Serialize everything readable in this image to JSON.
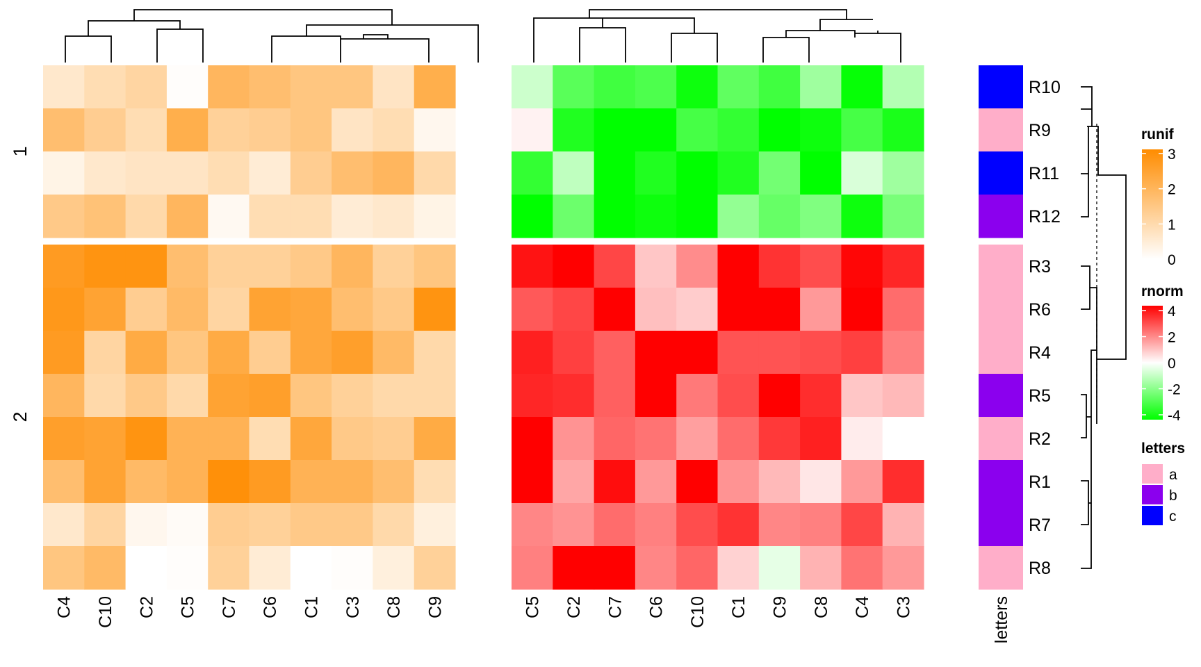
{
  "chart_data": {
    "type": "heatmap",
    "row_splits": [
      {
        "label": "1",
        "rows": [
          "R10",
          "R9",
          "R11",
          "R12"
        ]
      },
      {
        "label": "2",
        "rows": [
          "R3",
          "R6",
          "R4",
          "R5",
          "R2",
          "R1",
          "R7",
          "R8"
        ]
      }
    ],
    "row_order": [
      "R10",
      "R9",
      "R11",
      "R12",
      "R3",
      "R6",
      "R4",
      "R5",
      "R2",
      "R1",
      "R7",
      "R8"
    ],
    "heatmaps": [
      {
        "name": "runif",
        "columns": [
          "C4",
          "C10",
          "C2",
          "C5",
          "C7",
          "C6",
          "C1",
          "C3",
          "C8",
          "C9"
        ],
        "values": [
          [
            0.6,
            0.9,
            1.1,
            0.05,
            1.9,
            1.7,
            1.5,
            1.5,
            0.7,
            2.1
          ],
          [
            1.7,
            1.3,
            0.9,
            2.1,
            1.2,
            1.3,
            1.5,
            0.7,
            0.9,
            0.2
          ],
          [
            0.3,
            0.6,
            0.7,
            0.7,
            0.9,
            0.5,
            1.3,
            1.7,
            1.9,
            1.0
          ],
          [
            1.4,
            1.6,
            1.0,
            1.9,
            0.15,
            0.9,
            0.9,
            0.5,
            0.6,
            0.3
          ],
          [
            2.6,
            2.8,
            2.8,
            1.7,
            1.2,
            1.2,
            1.4,
            1.9,
            1.2,
            1.5
          ],
          [
            2.7,
            2.4,
            1.3,
            1.8,
            1.1,
            2.4,
            2.3,
            1.7,
            1.4,
            2.8
          ],
          [
            2.6,
            1.1,
            2.2,
            1.5,
            2.2,
            1.3,
            2.3,
            2.5,
            1.8,
            1.0
          ],
          [
            1.9,
            1.0,
            1.4,
            1.0,
            2.4,
            2.5,
            1.5,
            1.2,
            1.0,
            1.0
          ],
          [
            2.5,
            2.4,
            2.8,
            2.0,
            2.0,
            0.9,
            2.3,
            1.4,
            1.3,
            2.2
          ],
          [
            1.7,
            2.4,
            1.8,
            2.0,
            2.9,
            2.6,
            2.0,
            2.0,
            1.7,
            0.9
          ],
          [
            0.6,
            1.1,
            0.2,
            0.1,
            1.3,
            1.2,
            1.4,
            1.4,
            1.0,
            0.4
          ],
          [
            1.5,
            1.8,
            0.0,
            0.05,
            1.2,
            0.5,
            0.0,
            0.05,
            0.4,
            1.2
          ]
        ],
        "legend": {
          "title": "runif",
          "ticks": [
            0,
            1,
            2,
            3
          ]
        }
      },
      {
        "name": "rnorm",
        "columns": [
          "C5",
          "C2",
          "C7",
          "C6",
          "C10",
          "C1",
          "C9",
          "C8",
          "C4",
          "C3"
        ],
        "values": [
          [
            -0.8,
            -2.6,
            -3.0,
            -2.8,
            -3.8,
            -2.5,
            -3.0,
            -1.5,
            -3.9,
            -1.2
          ],
          [
            0.2,
            -3.5,
            -4.5,
            -4.0,
            -2.9,
            -3.2,
            -4.8,
            -3.8,
            -2.9,
            -3.6
          ],
          [
            -3.2,
            -1.0,
            -4.0,
            -3.5,
            -4.2,
            -3.5,
            -2.2,
            -4.0,
            -0.6,
            -1.5
          ],
          [
            -4.6,
            -2.3,
            -4.6,
            -3.8,
            -4.8,
            -1.7,
            -2.4,
            -2.0,
            -3.8,
            -2.1
          ],
          [
            3.7,
            4.4,
            2.9,
            0.9,
            1.8,
            4.4,
            3.2,
            2.8,
            3.9,
            3.4
          ],
          [
            2.6,
            2.9,
            4.1,
            1.0,
            0.8,
            4.4,
            4.4,
            1.6,
            4.1,
            2.3
          ],
          [
            3.5,
            3.0,
            2.5,
            4.4,
            4.4,
            2.7,
            2.7,
            2.8,
            3.0,
            2.0
          ],
          [
            3.4,
            3.3,
            2.5,
            4.4,
            2.1,
            2.8,
            4.3,
            3.3,
            0.9,
            1.1
          ],
          [
            4.4,
            1.7,
            2.4,
            2.2,
            1.5,
            2.3,
            3.1,
            3.5,
            0.3,
            0.0
          ],
          [
            4.4,
            1.4,
            3.8,
            1.6,
            4.4,
            1.7,
            1.1,
            0.4,
            1.6,
            3.3
          ],
          [
            1.9,
            1.7,
            2.3,
            2.0,
            2.8,
            3.2,
            1.9,
            2.0,
            2.9,
            1.2
          ],
          [
            2.0,
            4.4,
            4.4,
            1.9,
            2.4,
            0.7,
            -0.4,
            1.2,
            2.2,
            1.6
          ]
        ],
        "legend": {
          "title": "rnorm",
          "ticks": [
            4,
            2,
            0,
            -2,
            -4
          ]
        }
      }
    ],
    "row_annotation": {
      "name": "letters",
      "values": [
        "c",
        "a",
        "c",
        "b",
        "a",
        "a",
        "a",
        "b",
        "a",
        "b",
        "b",
        "a"
      ],
      "legend": {
        "title": "letters",
        "levels": [
          "a",
          "b",
          "c"
        ]
      }
    },
    "colors": {
      "runif_low": "#ffffff",
      "runif_high": "#ff8c00",
      "rnorm_low": "#00ff00",
      "rnorm_mid": "#ffffff",
      "rnorm_high": "#ff0000",
      "letters_a": "#ffaec9",
      "letters_b": "#8b00ee",
      "letters_c": "#0000ff"
    },
    "column_dendrograms": "top",
    "row_dendrogram": "right",
    "legend_position": "right"
  }
}
